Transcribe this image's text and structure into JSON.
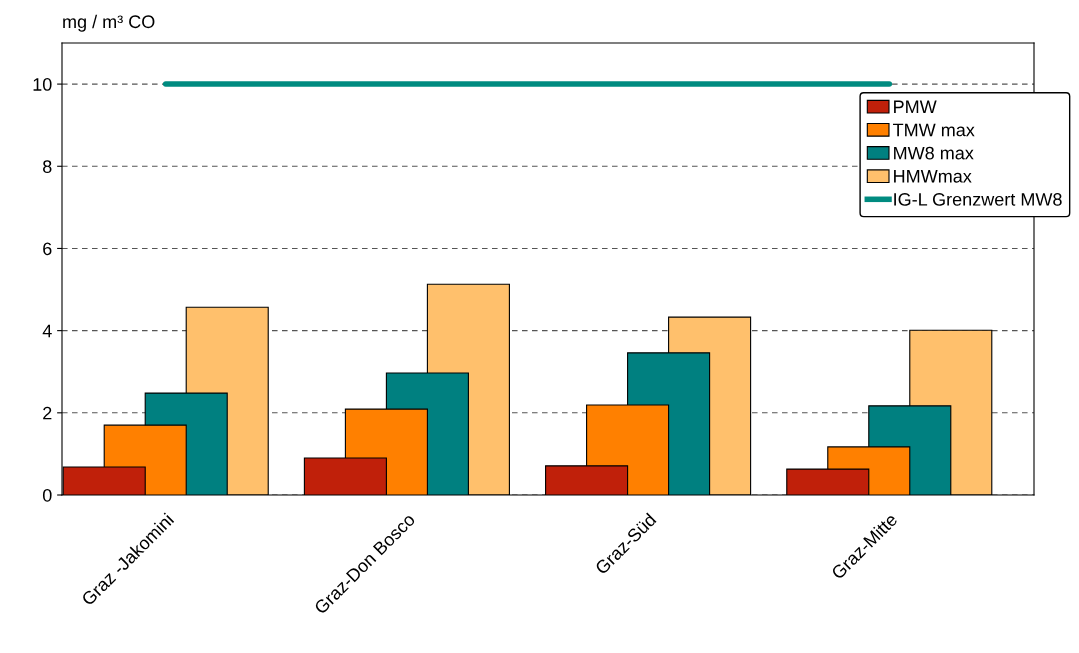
{
  "chart_data": {
    "type": "bar",
    "ylabel": "mg / m³ CO",
    "categories": [
      "Graz -Jakomini",
      "Graz-Don Bosco",
      "Graz-Süd",
      "Graz-Mitte"
    ],
    "series": [
      {
        "name": "PMW",
        "color": "#c0200a",
        "values": [
          0.68,
          0.9,
          0.71,
          0.63
        ]
      },
      {
        "name": "TMW max",
        "color": "#ff8000",
        "values": [
          1.7,
          2.09,
          2.19,
          1.17
        ]
      },
      {
        "name": "MW8 max",
        "color": "#008080",
        "values": [
          2.48,
          2.97,
          3.46,
          2.17
        ]
      },
      {
        "name": "HMWmax",
        "color": "#ffc06c",
        "values": [
          4.57,
          5.13,
          4.33,
          4.01
        ]
      },
      {
        "name": "IG-L Grenzwert MW8",
        "type": "line",
        "color": "#008b80",
        "values": [
          10,
          10,
          10,
          10
        ]
      }
    ],
    "ylim": [
      0,
      11
    ],
    "yticks": [
      0,
      2,
      4,
      6,
      8,
      10
    ],
    "grid": "y",
    "legend": "top right"
  }
}
